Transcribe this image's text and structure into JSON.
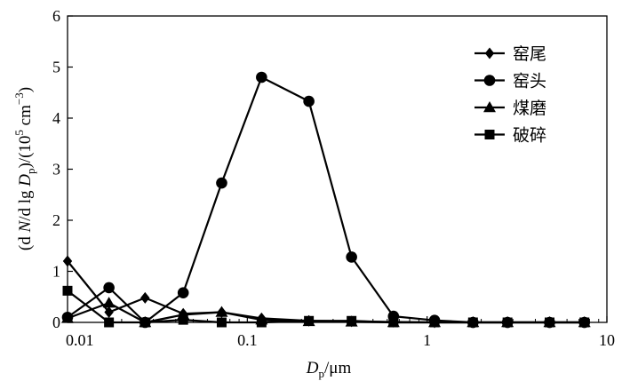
{
  "chart_data": {
    "type": "line",
    "xscale": "log",
    "xlim": [
      0.01,
      10
    ],
    "ylim": [
      0,
      6
    ],
    "xticks": [
      0.01,
      0.1,
      1,
      10
    ],
    "xtick_labels": [
      "0.01",
      "0.1",
      "1",
      "10"
    ],
    "yticks": [
      0,
      1,
      2,
      3,
      4,
      5,
      6
    ],
    "ytick_labels": [
      "0",
      "1",
      "2",
      "3",
      "4",
      "5",
      "6"
    ],
    "xlabel": {
      "main": "D",
      "sub": "p",
      "unit": "/μm"
    },
    "ylabel": {
      "p1": "(d ",
      "N": "N",
      "p2": "/d lg ",
      "D": "D",
      "sub": "p",
      "p3": ")/(10",
      "sup5": "5",
      "p4": " cm",
      "supm3": "−3",
      "p5": ")"
    },
    "legend_position": "top-right",
    "grid": false,
    "series": [
      {
        "name": "窑尾",
        "marker": "diamond",
        "x": [
          0.01,
          0.017,
          0.027,
          0.044,
          0.072,
          0.12,
          0.22,
          0.38,
          0.65,
          1.1,
          1.8,
          2.8,
          4.8,
          7.5
        ],
        "y": [
          1.2,
          0.2,
          0.48,
          0.17,
          0.2,
          0.08,
          0.03,
          0.02,
          0.01,
          0.0,
          0.0,
          0.0,
          0.0,
          0.0
        ]
      },
      {
        "name": "窑头",
        "marker": "circle",
        "x": [
          0.01,
          0.017,
          0.027,
          0.044,
          0.072,
          0.12,
          0.22,
          0.38,
          0.65,
          1.1,
          1.8,
          2.8,
          4.8,
          7.5
        ],
        "y": [
          0.1,
          0.68,
          0.0,
          0.58,
          2.73,
          4.8,
          4.33,
          1.28,
          0.12,
          0.04,
          0.0,
          0.0,
          0.0,
          0.0
        ]
      },
      {
        "name": "煤磨",
        "marker": "triangle",
        "x": [
          0.01,
          0.017,
          0.027,
          0.044,
          0.072,
          0.12,
          0.22,
          0.38,
          0.65,
          1.1,
          1.8,
          2.8,
          4.8,
          7.5
        ],
        "y": [
          0.08,
          0.38,
          0.0,
          0.15,
          0.2,
          0.05,
          0.02,
          0.01,
          0.0,
          0.0,
          0.0,
          0.0,
          0.0,
          0.0
        ]
      },
      {
        "name": "破碎",
        "marker": "square",
        "x": [
          0.01,
          0.017,
          0.027,
          0.044,
          0.072,
          0.12,
          0.22,
          0.38,
          0.65,
          1.1,
          1.8,
          2.8,
          4.8,
          7.5
        ],
        "y": [
          0.62,
          0.0,
          0.0,
          0.05,
          0.0,
          0.0,
          0.03,
          0.03,
          0.0,
          0.0,
          0.0,
          0.0,
          0.0,
          0.0
        ]
      }
    ]
  }
}
